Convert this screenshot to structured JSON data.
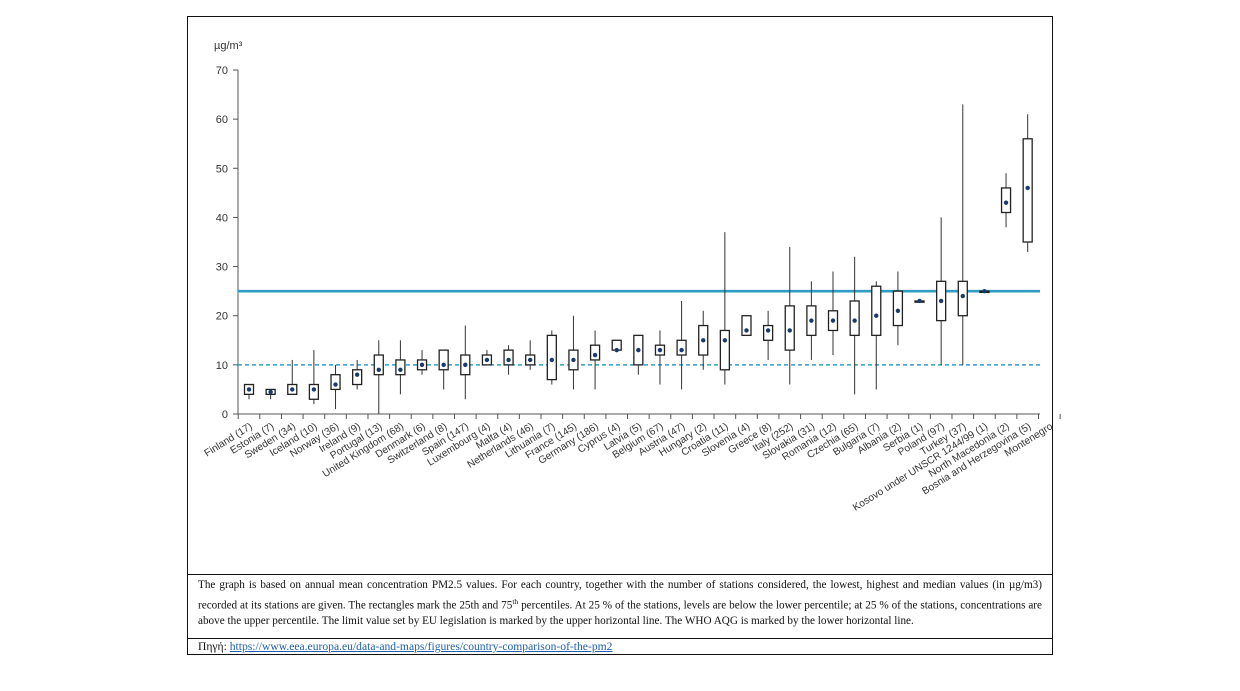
{
  "chart_data": {
    "type": "box",
    "unit_label": "µg/m³",
    "ylim": [
      0,
      70
    ],
    "yticks": [
      0,
      10,
      20,
      30,
      40,
      50,
      60,
      70
    ],
    "reference_lines": [
      {
        "value": 25,
        "style": "solid",
        "color": "#2e9dc3"
      },
      {
        "value": 10,
        "style": "dashed",
        "color": "#2e9dc3"
      }
    ],
    "box_color": "#222222",
    "median_color": "#1a3a6b",
    "categories": [
      {
        "label": "Finland (17)",
        "min": 3,
        "q1": 4,
        "median": 5,
        "q3": 6,
        "max": 6
      },
      {
        "label": "Estonia (7)",
        "min": 3,
        "q1": 4,
        "median": 4.5,
        "q3": 5,
        "max": 5
      },
      {
        "label": "Sweden (34)",
        "min": 4,
        "q1": 4,
        "median": 5,
        "q3": 6,
        "max": 11
      },
      {
        "label": "Iceland (10)",
        "min": 2,
        "q1": 3,
        "median": 5,
        "q3": 6,
        "max": 13
      },
      {
        "label": "Norway (36)",
        "min": 1,
        "q1": 5,
        "median": 6,
        "q3": 8,
        "max": 10
      },
      {
        "label": "Ireland (9)",
        "min": 5,
        "q1": 6,
        "median": 8,
        "q3": 9,
        "max": 11
      },
      {
        "label": "Portugal (13)",
        "min": 0,
        "q1": 8,
        "median": 9,
        "q3": 12,
        "max": 15
      },
      {
        "label": "United Kingdom (68)",
        "min": 4,
        "q1": 8,
        "median": 9,
        "q3": 11,
        "max": 15
      },
      {
        "label": "Denmark (6)",
        "min": 8,
        "q1": 9,
        "median": 10,
        "q3": 11,
        "max": 13
      },
      {
        "label": "Switzerland (8)",
        "min": 5,
        "q1": 9,
        "median": 10,
        "q3": 13,
        "max": 13
      },
      {
        "label": "Spain (147)",
        "min": 3,
        "q1": 8,
        "median": 10,
        "q3": 12,
        "max": 18
      },
      {
        "label": "Luxembourg (4)",
        "min": 10,
        "q1": 10,
        "median": 11,
        "q3": 12,
        "max": 13
      },
      {
        "label": "Malta (4)",
        "min": 8,
        "q1": 10,
        "median": 11,
        "q3": 13,
        "max": 14
      },
      {
        "label": "Netherlands (46)",
        "min": 9,
        "q1": 10,
        "median": 11,
        "q3": 12,
        "max": 15
      },
      {
        "label": "Lithuania (7)",
        "min": 6,
        "q1": 7,
        "median": 11,
        "q3": 16,
        "max": 17
      },
      {
        "label": "France (145)",
        "min": 5,
        "q1": 9,
        "median": 11,
        "q3": 13,
        "max": 20
      },
      {
        "label": "Germany (186)",
        "min": 5,
        "q1": 11,
        "median": 12,
        "q3": 14,
        "max": 17
      },
      {
        "label": "Cyprus (4)",
        "min": 13,
        "q1": 13,
        "median": 13,
        "q3": 15,
        "max": 15
      },
      {
        "label": "Latvia (5)",
        "min": 8,
        "q1": 10,
        "median": 13,
        "q3": 16,
        "max": 16
      },
      {
        "label": "Belgium (67)",
        "min": 6,
        "q1": 12,
        "median": 13,
        "q3": 14,
        "max": 17
      },
      {
        "label": "Austria (47)",
        "min": 5,
        "q1": 12,
        "median": 13,
        "q3": 15,
        "max": 23
      },
      {
        "label": "Hungary (2)",
        "min": 9,
        "q1": 12,
        "median": 15,
        "q3": 18,
        "max": 21
      },
      {
        "label": "Croatia (11)",
        "min": 6,
        "q1": 9,
        "median": 15,
        "q3": 17,
        "max": 37
      },
      {
        "label": "Slovenia (4)",
        "min": 16,
        "q1": 16,
        "median": 17,
        "q3": 20,
        "max": 20
      },
      {
        "label": "Greece (8)",
        "min": 11,
        "q1": 15,
        "median": 17,
        "q3": 18,
        "max": 21
      },
      {
        "label": "Italy (252)",
        "min": 6,
        "q1": 13,
        "median": 17,
        "q3": 22,
        "max": 34
      },
      {
        "label": "Slovakia (31)",
        "min": 11,
        "q1": 16,
        "median": 19,
        "q3": 22,
        "max": 27
      },
      {
        "label": "Romania (12)",
        "min": 12,
        "q1": 17,
        "median": 19,
        "q3": 21,
        "max": 29
      },
      {
        "label": "Czechia (65)",
        "min": 4,
        "q1": 16,
        "median": 19,
        "q3": 23,
        "max": 32
      },
      {
        "label": "Bulgaria (7)",
        "min": 5,
        "q1": 16,
        "median": 20,
        "q3": 26,
        "max": 27
      },
      {
        "label": "Albania (2)",
        "min": 14,
        "q1": 18,
        "median": 21,
        "q3": 25,
        "max": 29
      },
      {
        "label": "Serbia (1)",
        "min": 23,
        "q1": 23,
        "median": 23,
        "q3": 23,
        "max": 23
      },
      {
        "label": "Poland (97)",
        "min": 10,
        "q1": 19,
        "median": 23,
        "q3": 27,
        "max": 40
      },
      {
        "label": "Turkey (37)",
        "min": 10,
        "q1": 20,
        "median": 24,
        "q3": 27,
        "max": 63
      },
      {
        "label": "Kosovo under UNSCR 1244/99 (1)",
        "min": 25,
        "q1": 25,
        "median": 25,
        "q3": 25,
        "max": 25
      },
      {
        "label": "North Macedonia (2)",
        "min": 38,
        "q1": 41,
        "median": 43,
        "q3": 46,
        "max": 49
      },
      {
        "label": "Bosnia and Herzegovina (5)",
        "min": 33,
        "q1": 35,
        "median": 46,
        "q3": 56,
        "max": 61
      },
      {
        "label": "Montenegro",
        "min": null,
        "q1": null,
        "median": null,
        "q3": null,
        "max": null
      }
    ]
  },
  "caption": {
    "text_part1": "The graph is based on annual mean concentration PM2.5 values. For each country, together with the number of stations considered, the lowest, highest and median values (in µg/m3) recorded at its stations are given. The rectangles mark the 25th and 75",
    "text_sup": "th",
    "text_part2": " percentiles. At 25 % of the stations, levels are below the lower percentile; at 25 % of the stations, concentrations are above the upper percentile. The limit value set by EU legislation is marked by the upper horizontal line. The WHO AQG is marked by the lower horizontal line."
  },
  "source": {
    "label": "Πηγή:",
    "link_text": "https://www.eea.europa.eu/data-and-maps/figures/country-comparison-of-the-pm2"
  }
}
